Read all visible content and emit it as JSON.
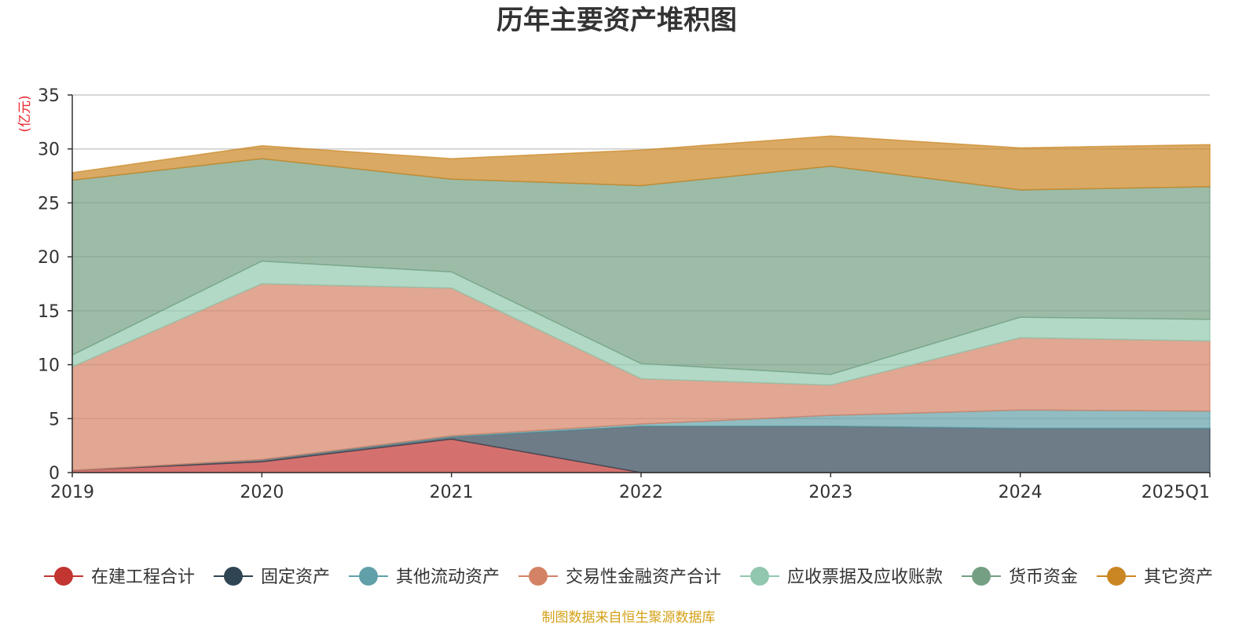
{
  "chart_data": {
    "type": "area",
    "stacked": true,
    "title": "历年主要资产堆积图",
    "unit_label": "(亿元)",
    "categories": [
      "2019",
      "2020",
      "2021",
      "2022",
      "2023",
      "2024",
      "2025Q1"
    ],
    "ylim": [
      0,
      35
    ],
    "yticks": [
      0,
      5,
      10,
      15,
      20,
      25,
      30,
      35
    ],
    "grid": true,
    "legend_position": "bottom",
    "series": [
      {
        "name": "在建工程合计",
        "color": "#c23531",
        "values": [
          0.2,
          1.0,
          3.1,
          0.0,
          0.0,
          0.0,
          0.0
        ]
      },
      {
        "name": "固定资产",
        "color": "#2f4554",
        "values": [
          0.0,
          0.2,
          0.2,
          4.3,
          4.3,
          4.1,
          4.1
        ]
      },
      {
        "name": "其他流动资产",
        "color": "#61a0a8",
        "values": [
          0.0,
          0.0,
          0.1,
          0.2,
          1.0,
          1.7,
          1.6
        ]
      },
      {
        "name": "交易性金融资产合计",
        "color": "#d48265",
        "values": [
          9.6,
          16.3,
          13.7,
          4.2,
          2.8,
          6.7,
          6.5
        ]
      },
      {
        "name": "应收票据及应收账款",
        "color": "#91c7ae",
        "values": [
          1.1,
          2.1,
          1.5,
          1.4,
          1.0,
          1.9,
          2.0
        ]
      },
      {
        "name": "货币资金",
        "color": "#749f83",
        "values": [
          16.2,
          9.5,
          8.6,
          16.5,
          19.3,
          11.8,
          12.3
        ]
      },
      {
        "name": "其它资产",
        "color": "#ca8622",
        "values": [
          0.7,
          1.2,
          1.9,
          3.3,
          2.8,
          3.9,
          3.9
        ]
      }
    ]
  },
  "footer": {
    "source_text": "制图数据来自恒生聚源数据库",
    "source_color": "#d4a017"
  },
  "colors": {
    "unit_label": "#e8262d",
    "axis": "#333333",
    "grid": "#cccccc"
  }
}
